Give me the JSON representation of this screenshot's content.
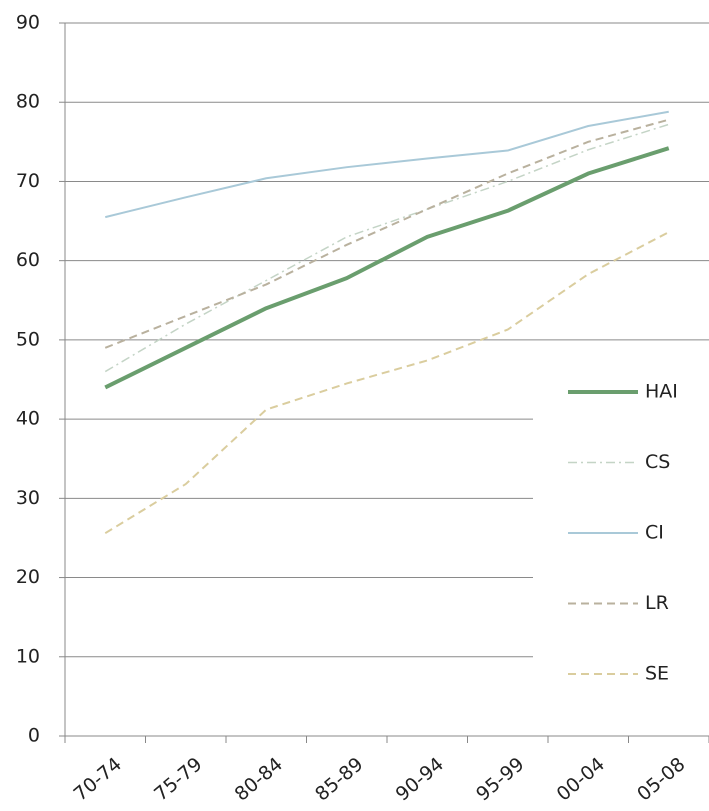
{
  "chart_data": {
    "type": "line",
    "categories": [
      "70-74",
      "75-79",
      "80-84",
      "85-89",
      "90-94",
      "95-99",
      "00-04",
      "05-08"
    ],
    "series": [
      {
        "name": "HAI",
        "color": "#6a9e6e",
        "linestyle": "solid",
        "linewidth": 4,
        "values": [
          44,
          49,
          54,
          57.8,
          63,
          66.3,
          71,
          74.2
        ]
      },
      {
        "name": "CS",
        "color": "#c4d4c6",
        "linestyle": "dashdot",
        "linewidth": 1.5,
        "values": [
          46,
          52,
          57.5,
          63,
          66.5,
          70,
          74,
          77.2
        ]
      },
      {
        "name": "CI",
        "color": "#a9c9d8",
        "linestyle": "solid",
        "linewidth": 2,
        "values": [
          65.5,
          68,
          70.4,
          71.8,
          72.9,
          73.9,
          77,
          78.8
        ]
      },
      {
        "name": "LR",
        "color": "#b9b19e",
        "linestyle": "dash",
        "linewidth": 2,
        "values": [
          49,
          53,
          57,
          62,
          66.5,
          71,
          75,
          77.8
        ]
      },
      {
        "name": "SE",
        "color": "#dacd9e",
        "linestyle": "dash",
        "linewidth": 2,
        "values": [
          25.6,
          31.8,
          41.2,
          44.5,
          47.4,
          51.3,
          58.3,
          63.6
        ]
      }
    ],
    "ylim": [
      0,
      90
    ],
    "yticks": [
      0,
      10,
      20,
      30,
      40,
      50,
      60,
      70,
      80,
      90
    ],
    "grid": true,
    "legend": "right"
  }
}
